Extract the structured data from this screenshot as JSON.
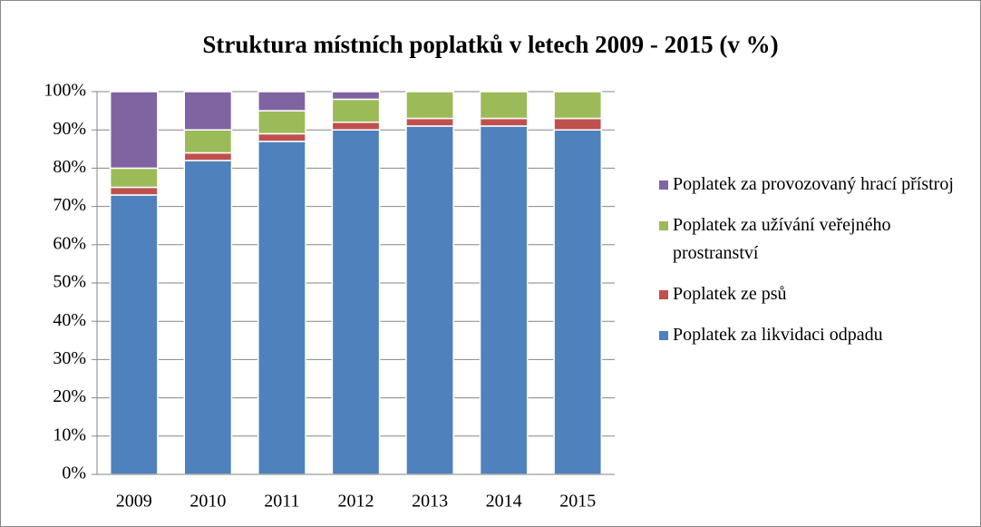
{
  "chart_data": {
    "type": "stacked_bar",
    "title": "Struktura místních poplatků v letech 2009 - 2015 (v %)",
    "categories": [
      "2009",
      "2010",
      "2011",
      "2012",
      "2013",
      "2014",
      "2015"
    ],
    "series": [
      {
        "name": "Poplatek za likvidaci odpadu",
        "color": "#4f81bd",
        "values": [
          73,
          82,
          87,
          90,
          91,
          91,
          90
        ]
      },
      {
        "name": "Poplatek ze psů",
        "color": "#c0504d",
        "values": [
          2,
          2,
          2,
          2,
          2,
          2,
          3
        ]
      },
      {
        "name": "Poplatek za užívání veřejného prostranství",
        "color": "#9bbb59",
        "values": [
          5,
          6,
          6,
          6,
          7,
          7,
          7
        ]
      },
      {
        "name": "Poplatek za provozovaný hrací přístroj",
        "color": "#8064a2",
        "values": [
          20,
          10,
          5,
          2,
          0,
          0,
          0
        ]
      }
    ],
    "ylim": [
      0,
      100
    ],
    "yticks": [
      {
        "value": 0,
        "label": "0%"
      },
      {
        "value": 10,
        "label": "10%"
      },
      {
        "value": 20,
        "label": "20%"
      },
      {
        "value": 30,
        "label": "30%"
      },
      {
        "value": 40,
        "label": "40%"
      },
      {
        "value": 50,
        "label": "50%"
      },
      {
        "value": 60,
        "label": "60%"
      },
      {
        "value": 70,
        "label": "70%"
      },
      {
        "value": 80,
        "label": "80%"
      },
      {
        "value": 90,
        "label": "90%"
      },
      {
        "value": 100,
        "label": "100%"
      }
    ],
    "grid": true,
    "legend": "right"
  }
}
